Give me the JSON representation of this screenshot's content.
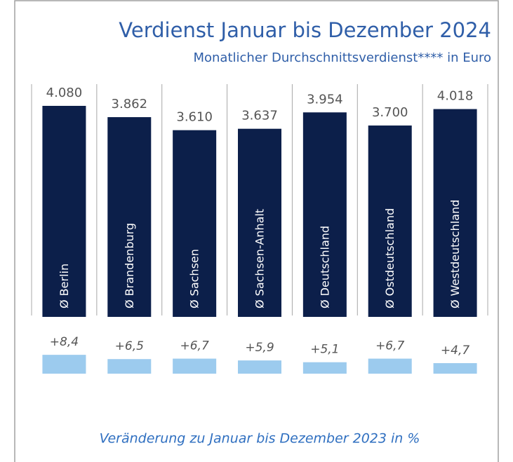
{
  "chart_data": [
    {
      "type": "bar",
      "title": "Verdienst Januar bis Dezember 2024",
      "subtitle": "Monatlicher Durchschnittsverdienst**** in Euro",
      "categories": [
        "Ø Berlin",
        "Ø Brandenburg",
        "Ø Sachsen",
        "Ø Sachsen-Anhalt",
        "Ø Deutschland",
        "Ø Ostdeutschland",
        "Ø Westdeutschland"
      ],
      "values": [
        4080,
        3862,
        3610,
        3637,
        3954,
        3700,
        4018
      ],
      "value_labels": [
        "4.080",
        "3.862",
        "3.610",
        "3.637",
        "3.954",
        "3.700",
        "4.018"
      ],
      "color": "#0c1f4a"
    },
    {
      "type": "bar",
      "values": [
        8.4,
        6.5,
        6.7,
        5.9,
        5.1,
        6.7,
        4.7
      ],
      "value_labels": [
        "+8,4",
        "+6,5",
        "+6,7",
        "+5,9",
        "+5,1",
        "+6,7",
        "+4,7"
      ],
      "color": "#9ccbee",
      "caption": "Veränderung zu Januar bis Dezember 2023 in %"
    }
  ]
}
